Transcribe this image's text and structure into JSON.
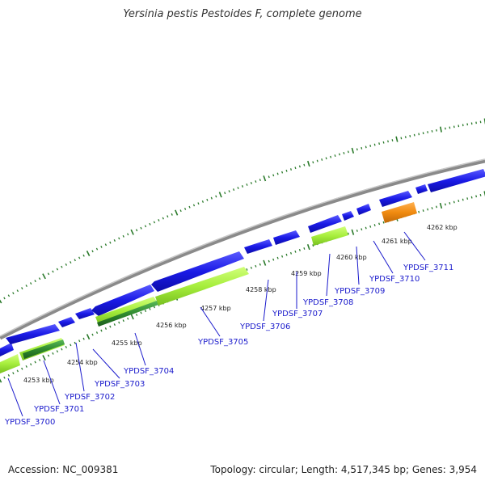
{
  "title": "Yersinia pestis Pestoides F, complete genome",
  "footer": {
    "accession": "Accession: NC_009381",
    "topology": "Topology: circular; Length: 4,517,345 bp; Genes: 3,954"
  },
  "colors": {
    "backbone": "#8a8a8a",
    "cds": "#1a1ae6",
    "light_green": "#a6ee3c",
    "dark_green": "#2f8a2f",
    "orange": "#f08a10",
    "tick": "#2a7a2a",
    "label": "#1a1acc"
  },
  "kbp_labels": [
    "4253 kbp",
    "4254 kbp",
    "4255 kbp",
    "4256 kbp",
    "4257 kbp",
    "4258 kbp",
    "4259 kbp",
    "4260 kbp",
    "4261 kbp",
    "4262 kbp"
  ],
  "genes": [
    "YPDSF_3700",
    "YPDSF_3701",
    "YPDSF_3702",
    "YPDSF_3703",
    "YPDSF_3704",
    "YPDSF_3705",
    "YPDSF_3706",
    "YPDSF_3707",
    "YPDSF_3708",
    "YPDSF_3709",
    "YPDSF_3710",
    "YPDSF_3711"
  ]
}
